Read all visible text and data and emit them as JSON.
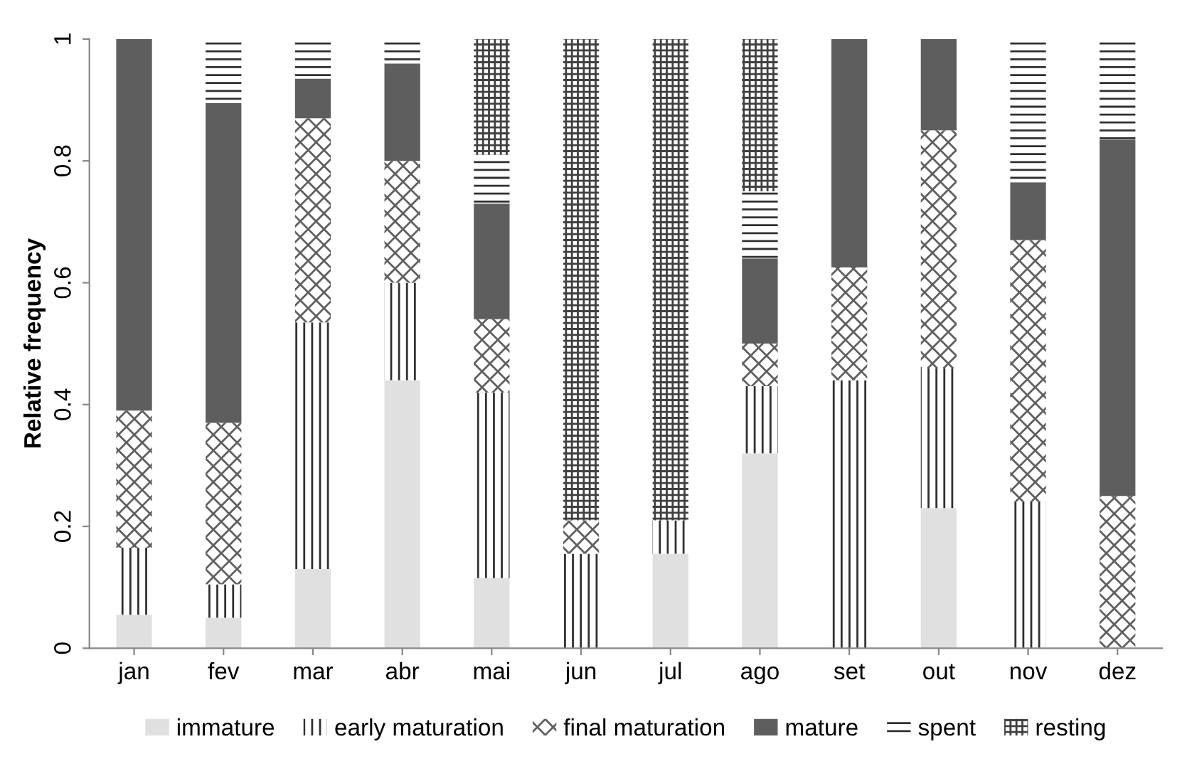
{
  "chart_data": {
    "type": "bar",
    "stacked": true,
    "ylabel": "Relative frequency",
    "categories": [
      "jan",
      "fev",
      "mar",
      "abr",
      "mai",
      "jun",
      "jul",
      "ago",
      "set",
      "out",
      "nov",
      "dez"
    ],
    "series": [
      {
        "name": "immature",
        "color": "#e0e0e0",
        "values": [
          0.055,
          0.05,
          0.13,
          0.44,
          0.115,
          0,
          0.155,
          0.32,
          0,
          0.23,
          0,
          0
        ]
      },
      {
        "name": "early maturation",
        "color": "#303030",
        "values": [
          0.11,
          0.055,
          0.405,
          0.16,
          0.305,
          0.155,
          0.055,
          0.11,
          0.44,
          0.23,
          0.24,
          0
        ]
      },
      {
        "name": "final maturation",
        "color": "#606060",
        "values": [
          0.225,
          0.265,
          0.335,
          0.2,
          0.12,
          0.055,
          0,
          0.07,
          0.185,
          0.39,
          0.43,
          0.25
        ]
      },
      {
        "name": "mature",
        "color": "#5e5e5e",
        "values": [
          0.61,
          0.525,
          0.065,
          0.16,
          0.19,
          0,
          0,
          0.14,
          0.375,
          0.15,
          0.095,
          0.585
        ]
      },
      {
        "name": "spent",
        "color": "#303030",
        "values": [
          0,
          0.105,
          0.065,
          0.04,
          0.08,
          0,
          0,
          0.11,
          0,
          0,
          0.235,
          0.165
        ]
      },
      {
        "name": "resting",
        "color": "#404040",
        "values": [
          0,
          0,
          0,
          0,
          0.19,
          0.79,
          0.79,
          0.25,
          0,
          0,
          0,
          0
        ]
      }
    ],
    "ylim": [
      0,
      1
    ],
    "yticks": [
      0,
      0.2,
      0.4,
      0.6,
      0.8,
      1
    ],
    "grid": false,
    "legend": "bottom"
  }
}
